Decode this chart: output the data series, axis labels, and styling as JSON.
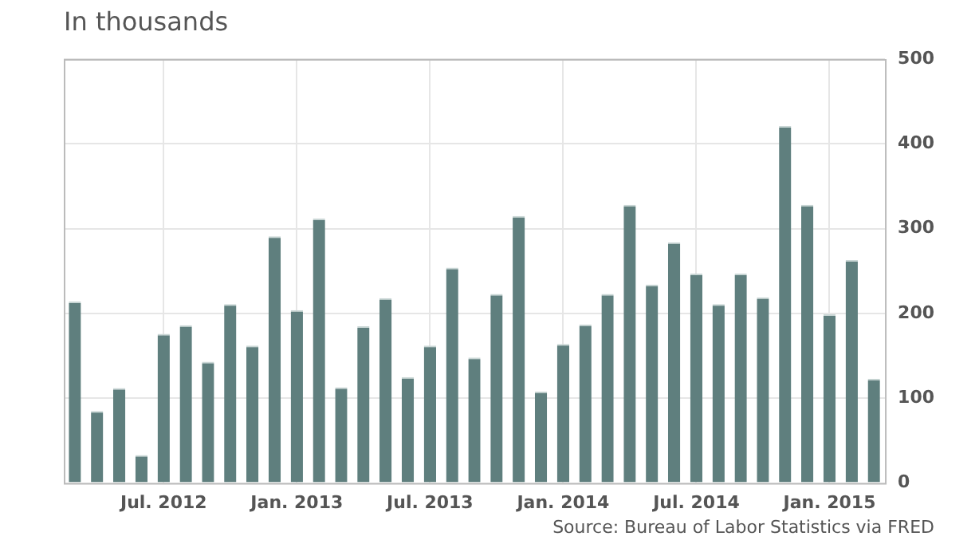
{
  "chart_data": {
    "type": "bar",
    "subtitle": "In thousands",
    "categories": [
      null,
      null,
      null,
      null,
      "Jul. 2012",
      null,
      null,
      null,
      null,
      null,
      "Jan. 2013",
      null,
      null,
      null,
      null,
      null,
      "Jul. 2013",
      null,
      null,
      null,
      null,
      null,
      "Jan. 2014",
      null,
      null,
      null,
      null,
      null,
      "Jul. 2014",
      null,
      null,
      null,
      null,
      null,
      "Jan. 2015",
      null,
      null
    ],
    "values": [
      214,
      85,
      112,
      33,
      176,
      186,
      143,
      211,
      162,
      291,
      204,
      312,
      113,
      185,
      218,
      125,
      162,
      254,
      148,
      223,
      315,
      108,
      164,
      187,
      223,
      328,
      234,
      284,
      247,
      211,
      247,
      219,
      421,
      328,
      199,
      263,
      123
    ],
    "color": "#5f7f7e",
    "ylim": [
      0,
      500
    ],
    "yticks": [
      0,
      100,
      200,
      300,
      400,
      500
    ],
    "grid": true,
    "annotations": [
      "Source: Bureau of Labor Statistics via FRED"
    ]
  }
}
